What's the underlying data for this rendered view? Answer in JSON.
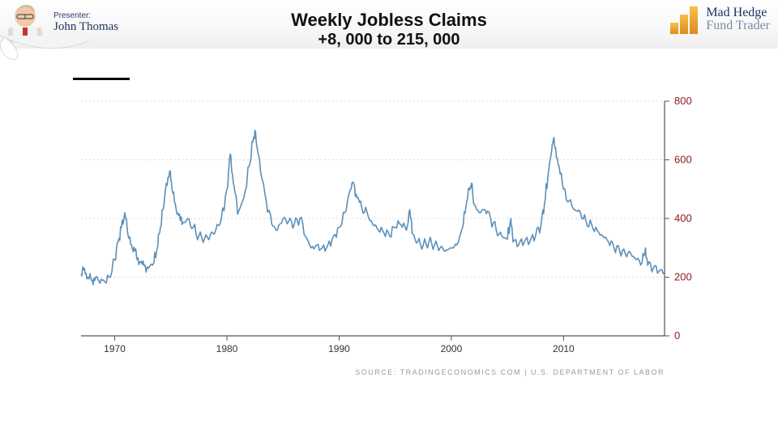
{
  "header": {
    "presenter_label": "Presenter:",
    "presenter_name": "John Thomas",
    "logo_line1": "Mad Hedge",
    "logo_line2": "Fund Trader",
    "logo_bar_heights": [
      14,
      24,
      34
    ]
  },
  "title": {
    "line1": "Weekly Jobless Claims",
    "line2": "+8, 000 to 215, 000"
  },
  "chart": {
    "type": "line",
    "line_color": "#5b8fb9",
    "line_width": 1.6,
    "grid_color": "#d9d9d9",
    "axis_color": "#555555",
    "background_color": "#ffffff",
    "ylim": [
      0,
      800
    ],
    "ytick_step": 200,
    "yticks": [
      0,
      200,
      400,
      600,
      800
    ],
    "ytick_color": "#8a1a1a",
    "xticks": [
      1970,
      1980,
      1990,
      2000,
      2010
    ],
    "x_range": [
      1967,
      2019
    ],
    "source": "SOURCE: TRADINGECONOMICS.COM  |  U.S. DEPARTMENT OF LABOR",
    "series": [
      [
        1967.0,
        210
      ],
      [
        1967.3,
        230
      ],
      [
        1967.6,
        200
      ],
      [
        1968.0,
        190
      ],
      [
        1968.3,
        200
      ],
      [
        1968.6,
        185
      ],
      [
        1969.0,
        190
      ],
      [
        1969.5,
        200
      ],
      [
        1970.0,
        260
      ],
      [
        1970.3,
        320
      ],
      [
        1970.6,
        370
      ],
      [
        1970.9,
        420
      ],
      [
        1971.2,
        340
      ],
      [
        1971.5,
        310
      ],
      [
        1971.8,
        290
      ],
      [
        1972.0,
        260
      ],
      [
        1972.3,
        250
      ],
      [
        1972.6,
        240
      ],
      [
        1973.0,
        230
      ],
      [
        1973.5,
        250
      ],
      [
        1973.8,
        300
      ],
      [
        1974.0,
        350
      ],
      [
        1974.3,
        430
      ],
      [
        1974.6,
        520
      ],
      [
        1974.9,
        560
      ],
      [
        1975.1,
        500
      ],
      [
        1975.4,
        450
      ],
      [
        1975.7,
        410
      ],
      [
        1976.0,
        380
      ],
      [
        1976.5,
        400
      ],
      [
        1977.0,
        370
      ],
      [
        1977.5,
        340
      ],
      [
        1978.0,
        330
      ],
      [
        1978.5,
        340
      ],
      [
        1979.0,
        360
      ],
      [
        1979.5,
        400
      ],
      [
        1980.0,
        500
      ],
      [
        1980.3,
        620
      ],
      [
        1980.5,
        550
      ],
      [
        1980.8,
        480
      ],
      [
        1981.0,
        420
      ],
      [
        1981.5,
        470
      ],
      [
        1982.0,
        580
      ],
      [
        1982.3,
        660
      ],
      [
        1982.5,
        700
      ],
      [
        1982.7,
        640
      ],
      [
        1983.0,
        560
      ],
      [
        1983.5,
        460
      ],
      [
        1984.0,
        380
      ],
      [
        1984.5,
        360
      ],
      [
        1985.0,
        400
      ],
      [
        1985.5,
        390
      ],
      [
        1986.0,
        380
      ],
      [
        1986.5,
        400
      ],
      [
        1987.0,
        340
      ],
      [
        1987.5,
        300
      ],
      [
        1988.0,
        310
      ],
      [
        1988.5,
        300
      ],
      [
        1989.0,
        310
      ],
      [
        1989.5,
        340
      ],
      [
        1990.0,
        370
      ],
      [
        1990.5,
        420
      ],
      [
        1991.0,
        500
      ],
      [
        1991.3,
        520
      ],
      [
        1991.6,
        470
      ],
      [
        1992.0,
        440
      ],
      [
        1992.5,
        420
      ],
      [
        1993.0,
        380
      ],
      [
        1993.5,
        360
      ],
      [
        1994.0,
        350
      ],
      [
        1994.5,
        340
      ],
      [
        1995.0,
        370
      ],
      [
        1995.5,
        380
      ],
      [
        1996.0,
        360
      ],
      [
        1996.3,
        430
      ],
      [
        1996.5,
        350
      ],
      [
        1997.0,
        320
      ],
      [
        1997.5,
        310
      ],
      [
        1998.0,
        320
      ],
      [
        1998.5,
        310
      ],
      [
        1999.0,
        300
      ],
      [
        1999.5,
        290
      ],
      [
        2000.0,
        300
      ],
      [
        2000.5,
        310
      ],
      [
        2001.0,
        370
      ],
      [
        2001.3,
        440
      ],
      [
        2001.6,
        500
      ],
      [
        2001.8,
        520
      ],
      [
        2002.0,
        450
      ],
      [
        2002.5,
        420
      ],
      [
        2003.0,
        430
      ],
      [
        2003.5,
        400
      ],
      [
        2004.0,
        360
      ],
      [
        2004.5,
        340
      ],
      [
        2005.0,
        330
      ],
      [
        2005.3,
        400
      ],
      [
        2005.5,
        320
      ],
      [
        2006.0,
        310
      ],
      [
        2006.5,
        320
      ],
      [
        2007.0,
        320
      ],
      [
        2007.5,
        340
      ],
      [
        2008.0,
        380
      ],
      [
        2008.3,
        450
      ],
      [
        2008.6,
        540
      ],
      [
        2008.9,
        620
      ],
      [
        2009.1,
        670
      ],
      [
        2009.3,
        640
      ],
      [
        2009.6,
        580
      ],
      [
        2010.0,
        500
      ],
      [
        2010.5,
        460
      ],
      [
        2011.0,
        430
      ],
      [
        2011.5,
        420
      ],
      [
        2012.0,
        390
      ],
      [
        2012.5,
        380
      ],
      [
        2013.0,
        360
      ],
      [
        2013.5,
        340
      ],
      [
        2014.0,
        320
      ],
      [
        2014.5,
        300
      ],
      [
        2015.0,
        290
      ],
      [
        2015.5,
        280
      ],
      [
        2016.0,
        280
      ],
      [
        2016.5,
        260
      ],
      [
        2017.0,
        250
      ],
      [
        2017.3,
        300
      ],
      [
        2017.5,
        240
      ],
      [
        2018.0,
        230
      ],
      [
        2018.5,
        220
      ],
      [
        2019.0,
        215
      ]
    ]
  }
}
